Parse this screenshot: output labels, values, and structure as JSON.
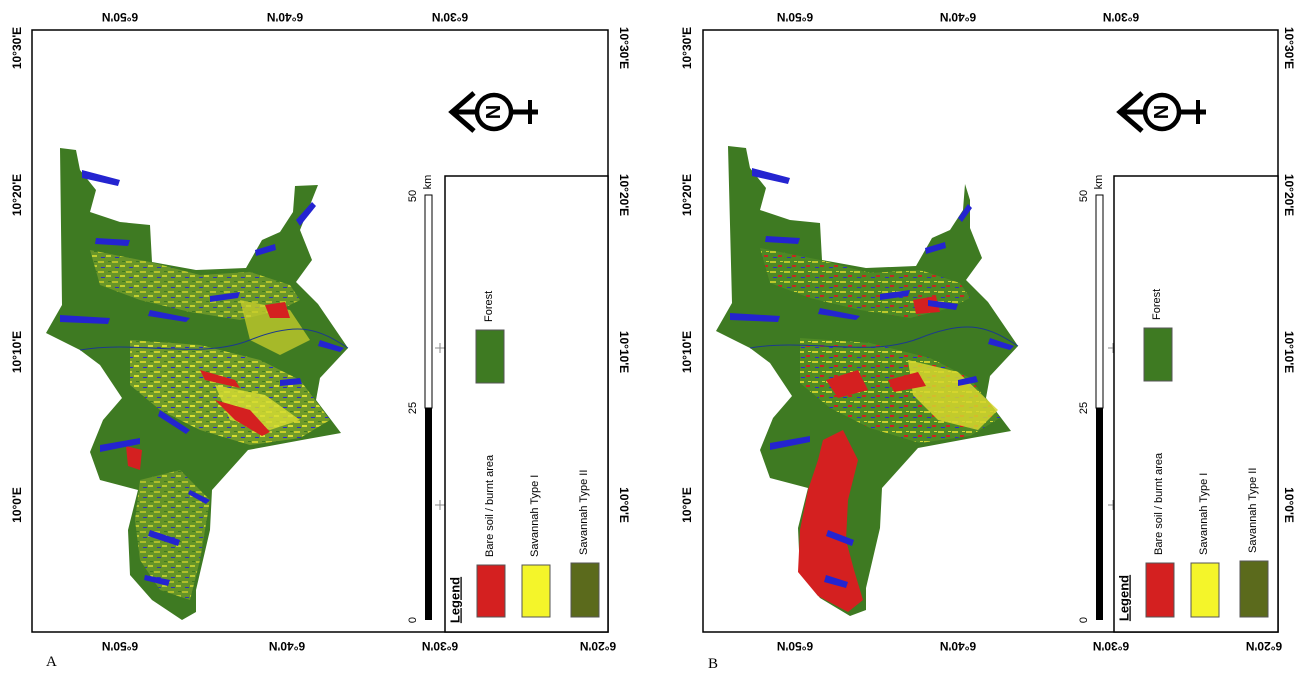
{
  "panels": [
    {
      "letter": "A",
      "top_coords": [
        "6°50'N",
        "6°40'N",
        "6°30'N"
      ],
      "bottom_coords": [
        "6°50'N",
        "6°40'N",
        "6°30'N",
        "6°20'N"
      ],
      "left_coords": [
        "10°30'E",
        "10°20'E",
        "10°10'E",
        "10°0'E"
      ],
      "right_coords": [
        "10°30'E",
        "10°20'E",
        "10°10'E",
        "10°0'E"
      ],
      "north_symbol": "N",
      "scalebar": {
        "ticks": [
          "50",
          "25",
          "0"
        ],
        "unit": "km"
      },
      "legend": {
        "title": "Legend",
        "items": [
          {
            "label": "Bare soil / burnt area",
            "color": "#d42020"
          },
          {
            "label": "Savannah Type I",
            "color": "#f4f52a"
          },
          {
            "label": "Savannah Type II",
            "color": "#5b6a1c"
          },
          {
            "label": "Forest",
            "color": "#3e7a22"
          }
        ]
      }
    },
    {
      "letter": "B",
      "top_coords": [
        "6°50'N",
        "6°40'N",
        "6°30'N"
      ],
      "bottom_coords": [
        "6°50'N",
        "6°40'N",
        "6°30'N",
        "6°20'N"
      ],
      "left_coords": [
        "10°30'E",
        "10°20'E",
        "10°10'E",
        "10°0'E"
      ],
      "right_coords": [
        "10°30'E",
        "10°20'E",
        "10°10'E",
        "10°0'E"
      ],
      "north_symbol": "N",
      "scalebar": {
        "ticks": [
          "50",
          "25",
          "0"
        ],
        "unit": "km"
      },
      "legend": {
        "title": "Legend",
        "items": [
          {
            "label": "Bare soil / burnt area",
            "color": "#d42020"
          },
          {
            "label": "Savannah Type I",
            "color": "#f4f52a"
          },
          {
            "label": "Savannah Type II",
            "color": "#5b6a1c"
          },
          {
            "label": "Forest",
            "color": "#3e7a22"
          }
        ]
      }
    }
  ],
  "map_colors": {
    "forest": "#3e7a22",
    "savannah_i": "#d6d62e",
    "bare": "#d42020",
    "water": "#2424d0",
    "grass": "#7fa130"
  }
}
